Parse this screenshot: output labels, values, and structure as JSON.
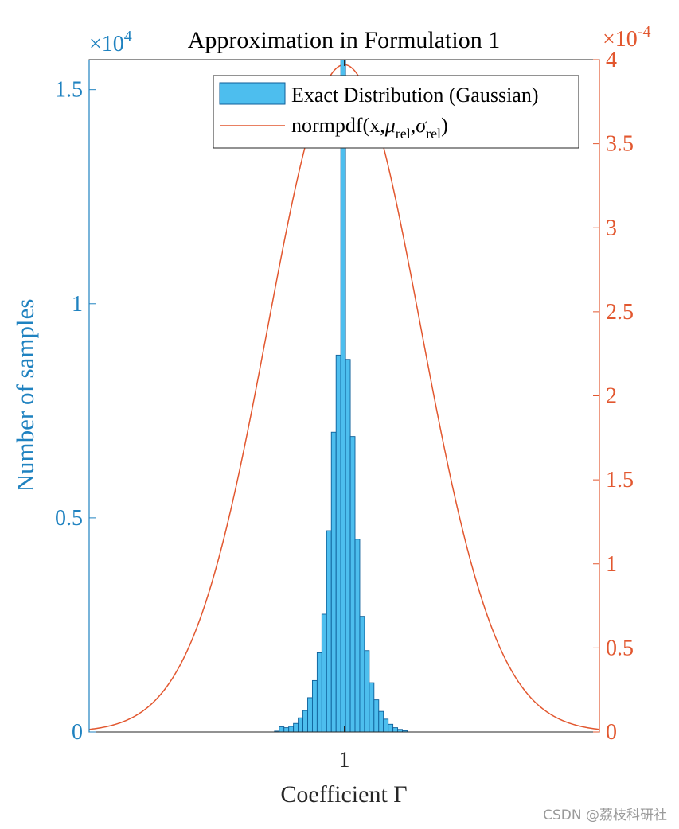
{
  "colors": {
    "left_axis": "#1f82c0",
    "bar_fill": "#4dbeee",
    "bar_edge": "#0e5f99",
    "curve": "#e2572f",
    "axis_text": "#262626"
  },
  "watermark": "CSDN @荔枝科研社",
  "chart_data": {
    "type": "bar",
    "title": "Approximation in Formulation 1",
    "xlabel": "Coefficient Γ",
    "ylabel_left": "Number of samples",
    "left_axis": {
      "exponent_label": "×10",
      "exponent_sup": "4",
      "ylim": [
        0,
        1.57
      ],
      "ticks": [
        0,
        0.5,
        1,
        1.5
      ],
      "tick_labels": [
        "0",
        "0.5",
        "1",
        "1.5"
      ]
    },
    "right_axis": {
      "exponent_label": "×10",
      "exponent_sup": "-4",
      "ylim": [
        0,
        4
      ],
      "ticks": [
        0,
        0.5,
        1,
        1.5,
        2,
        2.5,
        3,
        3.5,
        4
      ],
      "tick_labels": [
        "0",
        "0.5",
        "1",
        "1.5",
        "2",
        "2.5",
        "3",
        "3.5",
        "4"
      ]
    },
    "xlim": [
      0.93,
      1.07
    ],
    "xticks": [
      1
    ],
    "xtick_labels": [
      "1"
    ],
    "legend": {
      "placement": "top-right",
      "entries": [
        {
          "kind": "bar",
          "label": "Exact Distribution (Gaussian)"
        },
        {
          "kind": "line",
          "label_prefix": "normpdf(x,",
          "mu": "μ",
          "sigma": "σ",
          "sub": "rel",
          "label_suffix": ")"
        }
      ]
    },
    "series": [
      {
        "name": "Exact Distribution (Gaussian)",
        "axis": "left",
        "kind": "histogram",
        "bin_width": 0.0013,
        "x": [
          0.9815,
          0.9828,
          0.9841,
          0.9854,
          0.9867,
          0.988,
          0.9893,
          0.9906,
          0.9919,
          0.9932,
          0.9945,
          0.9958,
          0.9971,
          0.9984,
          0.9997,
          1.001,
          1.0023,
          1.0036,
          1.0049,
          1.0062,
          1.0075,
          1.0088,
          1.0101,
          1.0114,
          1.0127,
          1.014,
          1.0153,
          1.0166
        ],
        "values": [
          0.002,
          0.012,
          0.01,
          0.013,
          0.02,
          0.033,
          0.05,
          0.08,
          0.12,
          0.185,
          0.275,
          0.47,
          0.7,
          0.88,
          1.57,
          0.87,
          0.69,
          0.45,
          0.27,
          0.19,
          0.115,
          0.075,
          0.048,
          0.03,
          0.018,
          0.01,
          0.006,
          0.003
        ]
      },
      {
        "name": "normpdf(x,μrel,σrel)",
        "axis": "right",
        "kind": "line",
        "mu": 1.0,
        "sigma": 0.021,
        "peak": 3.97
      }
    ]
  }
}
